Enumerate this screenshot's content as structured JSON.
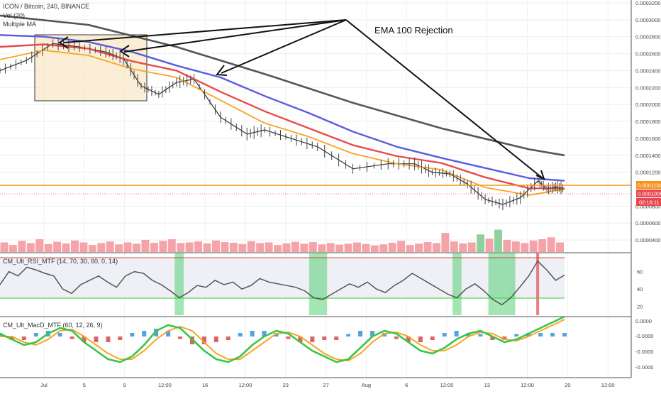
{
  "header": {
    "symbol_line": "ICON / Bitcoin, 240, BINANCE",
    "volume_line": "Vol (20)",
    "ma_line": "Multiple MA"
  },
  "annotation": {
    "text": "EMA 100 Rejection"
  },
  "price_axis": {
    "ticks": [
      "0.0003200",
      "0.0003000",
      "0.0002800",
      "0.0002600",
      "0.0002400",
      "0.0002200",
      "0.0002000",
      "0.0001800",
      "0.0001600",
      "0.0001400",
      "0.0001200",
      "0.0000800",
      "0.0000600",
      "0.0000400"
    ],
    "orange_level": "0.0001104",
    "red_level": "0.0001005",
    "countdown": "02:16:11"
  },
  "rsi_panel": {
    "label": "CM_Ult_RSI_MTF (14, 70, 30, 60, 0, 14)",
    "ticks": [
      "60",
      "40",
      "20"
    ]
  },
  "macd_panel": {
    "label": "CM_Ult_MacD_MTF (60, 12, 26, 9)",
    "ticks": [
      "0.0000",
      "-0.0000",
      "-0.0000",
      "-0.0000"
    ]
  },
  "time_axis": {
    "ticks": [
      "Jul",
      "5",
      "9",
      "12:00",
      "16",
      "12:00",
      "23",
      "27",
      "Aug",
      "6",
      "12:00",
      "13",
      "12:00",
      "20",
      "12:00"
    ]
  },
  "colors": {
    "ema_fast": "#f5a623",
    "ema_mid": "#e84c4c",
    "ema_100": "#5b5bdf",
    "ma_long": "#555555",
    "resistance": "#f7931a",
    "current": "#e8474f",
    "candle_up": "#555555",
    "volume": "#f4a3a8"
  },
  "chart_data": {
    "type": "line",
    "title": "ICON / Bitcoin, 240, BINANCE",
    "x_ticks": [
      "Jul",
      "5",
      "9",
      "12:00",
      "16",
      "12:00",
      "23",
      "27",
      "Aug",
      "6",
      "12:00",
      "13",
      "12:00",
      "20",
      "12:00"
    ],
    "ylim": [
      3e-05,
      0.00032
    ],
    "series": [
      {
        "name": "price",
        "x": [
          0,
          3,
          6,
          9,
          12,
          14,
          16,
          18,
          20,
          22,
          25,
          28,
          30,
          33,
          36,
          40,
          44,
          47,
          49,
          51,
          53,
          55,
          57,
          59,
          61,
          62,
          63,
          64
        ],
        "values": [
          0.00024,
          0.000252,
          0.000272,
          0.000268,
          0.000262,
          0.000254,
          0.000222,
          0.000212,
          0.000226,
          0.00023,
          0.000185,
          0.000165,
          0.00017,
          0.00016,
          0.00015,
          0.000124,
          0.00013,
          0.00013,
          0.00012,
          0.000118,
          0.000106,
          8.8e-05,
          8.2e-05,
          9e-05,
          0.00011,
          0.0001,
          0.000103,
          0.0001005
        ]
      },
      {
        "name": "",
        "x": [
          0,
          5,
          10,
          15,
          20,
          25,
          30,
          35,
          40,
          45,
          50,
          55,
          60,
          64
        ],
        "values": [
          0.000253,
          0.000264,
          0.000258,
          0.000242,
          0.000232,
          0.000205,
          0.000178,
          0.000162,
          0.000142,
          0.00013,
          0.000123,
          0.000102,
          9.3e-05,
          0.0001
        ]
      },
      {
        "name": "",
        "x": [
          0,
          5,
          10,
          15,
          20,
          25,
          30,
          35,
          40,
          45,
          50,
          55,
          60,
          64
        ],
        "values": [
          0.000268,
          0.000271,
          0.000266,
          0.000251,
          0.00024,
          0.000215,
          0.000192,
          0.000172,
          0.000152,
          0.000139,
          0.000131,
          0.000114,
          0.000101,
          0.000101
        ]
      },
      {
        "name": "",
        "x": [
          0,
          5,
          10,
          15,
          20,
          25,
          30,
          35,
          40,
          45,
          50,
          55,
          60,
          64
        ],
        "values": [
          0.000282,
          0.00028,
          0.000274,
          0.000262,
          0.000246,
          0.000232,
          0.00021,
          0.00019,
          0.000168,
          0.00015,
          0.000137,
          0.000125,
          0.000113,
          0.00011
        ]
      },
      {
        "name": "",
        "x": [
          0,
          10,
          20,
          30,
          40,
          50,
          60,
          64
        ],
        "values": [
          0.000305,
          0.000294,
          0.000268,
          0.000236,
          0.000202,
          0.000172,
          0.000147,
          0.00014
        ]
      }
    ],
    "volume": [
      0.3,
      0.22,
      0.35,
      0.28,
      0.4,
      0.25,
      0.32,
      0.27,
      0.36,
      0.3,
      0.22,
      0.28,
      0.33,
      0.24,
      0.3,
      0.26,
      0.38,
      0.29,
      0.35,
      0.4,
      0.28,
      0.3,
      0.33,
      0.27,
      0.36,
      0.31,
      0.29,
      0.25,
      0.34,
      0.28,
      0.3,
      0.22,
      0.27,
      0.32,
      0.26,
      0.31,
      0.24,
      0.28,
      0.23,
      0.26,
      0.3,
      0.25,
      0.21,
      0.24,
      0.29,
      0.35,
      0.22,
      0.26,
      0.31,
      0.28,
      0.6,
      0.33,
      0.27,
      0.3,
      0.55,
      0.42,
      0.7,
      0.38,
      0.33,
      0.28,
      0.36,
      0.4,
      0.46,
      0.3
    ],
    "rsi": [
      45,
      60,
      55,
      65,
      62,
      58,
      55,
      40,
      35,
      45,
      50,
      55,
      48,
      42,
      55,
      60,
      58,
      50,
      45,
      38,
      30,
      36,
      44,
      42,
      50,
      45,
      48,
      40,
      44,
      52,
      48,
      46,
      44,
      42,
      38,
      30,
      28,
      34,
      40,
      46,
      42,
      48,
      40,
      36,
      44,
      50,
      58,
      52,
      46,
      40,
      34,
      30,
      40,
      46,
      38,
      28,
      22,
      30,
      42,
      55,
      72,
      62,
      50,
      56
    ],
    "rsi_lim": [
      10,
      80
    ],
    "macd_fast": [
      0.1,
      -0.1,
      -0.3,
      -0.2,
      0.1,
      0.3,
      0.2,
      -0.2,
      -0.5,
      -0.8,
      -0.9,
      -0.7,
      -0.3,
      0.2,
      0.4,
      0.3,
      -0.1,
      -0.5,
      -0.8,
      -0.9,
      -0.7,
      -0.3,
      0.0,
      0.2,
      0.1,
      -0.2,
      -0.5,
      -0.7,
      -0.9,
      -0.8,
      -0.4,
      0.0,
      0.2,
      0.1,
      -0.2,
      -0.5,
      -0.6,
      -0.4,
      -0.1,
      0.1,
      0.2,
      0.0,
      -0.2,
      -0.1,
      0.1,
      0.3,
      0.5,
      0.7
    ],
    "macd_slow": [
      0.0,
      0.0,
      -0.2,
      -0.3,
      -0.1,
      0.2,
      0.25,
      0.0,
      -0.3,
      -0.6,
      -0.8,
      -0.8,
      -0.5,
      -0.1,
      0.2,
      0.35,
      0.2,
      -0.2,
      -0.6,
      -0.8,
      -0.8,
      -0.5,
      -0.2,
      0.1,
      0.15,
      0.0,
      -0.3,
      -0.6,
      -0.8,
      -0.85,
      -0.6,
      -0.2,
      0.1,
      0.15,
      0.0,
      -0.3,
      -0.5,
      -0.5,
      -0.3,
      0.0,
      0.15,
      0.1,
      -0.1,
      -0.15,
      0.0,
      0.2,
      0.4,
      0.6
    ]
  }
}
